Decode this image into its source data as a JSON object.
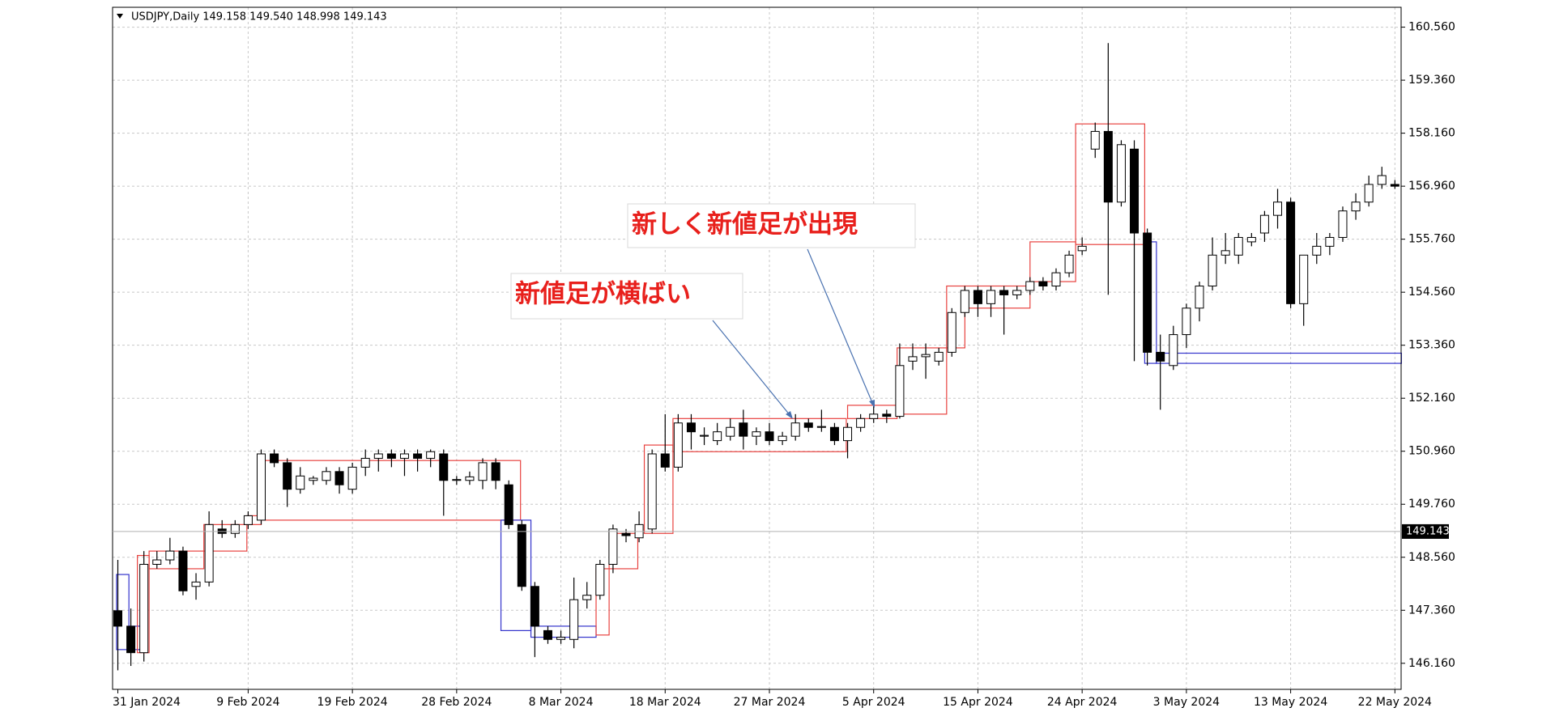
{
  "chart_data": {
    "type": "candlestick",
    "title": "USDJPY,Daily  149.158 149.540 148.998 149.143",
    "annotations": [
      "新しく新値足が出現",
      "新値足が横ばい"
    ],
    "categories": [
      "31 Jan 2024",
      null,
      null,
      null,
      null,
      null,
      null,
      null,
      null,
      null,
      "9 Feb 2024",
      null,
      null,
      null,
      null,
      null,
      null,
      null,
      "19 Feb 2024",
      null,
      null,
      null,
      null,
      null,
      null,
      null,
      "28 Feb 2024",
      null,
      null,
      null,
      null,
      null,
      null,
      null,
      "8 Mar 2024",
      null,
      null,
      null,
      null,
      null,
      null,
      null,
      "18 Mar 2024",
      null,
      null,
      null,
      null,
      null,
      null,
      null,
      "27 Mar 2024",
      null,
      null,
      null,
      null,
      null,
      null,
      null,
      "5 Apr 2024",
      null,
      null,
      null,
      null,
      null,
      null,
      null,
      "15 Apr 2024",
      null,
      null,
      null,
      null,
      null,
      null,
      null,
      "24 Apr 2024",
      null,
      null,
      null,
      null,
      null,
      null,
      null,
      "3 May 2024",
      null,
      null,
      null,
      null,
      null,
      null,
      null,
      "13 May 2024",
      null,
      null,
      null,
      null,
      null,
      null,
      null,
      "22 May 2024"
    ],
    "open": [
      147.35,
      147.0,
      146.4,
      148.4,
      148.5,
      148.7,
      147.9,
      148.0,
      149.2,
      149.1,
      149.3,
      149.4,
      150.9,
      150.7,
      150.1,
      150.3,
      150.3,
      150.5,
      150.1,
      150.6,
      150.8,
      150.9,
      150.8,
      150.9,
      150.8,
      150.9,
      150.3,
      150.3,
      150.3,
      150.7,
      150.2,
      149.3,
      147.9,
      146.9,
      146.7,
      146.7,
      147.6,
      147.7,
      148.4,
      149.1,
      149.0,
      149.2,
      150.9,
      150.6,
      151.6,
      151.3,
      151.2,
      151.3,
      151.6,
      151.3,
      151.4,
      151.2,
      151.3,
      151.6,
      151.5,
      151.5,
      151.2,
      151.5,
      151.7,
      151.8,
      151.75,
      153.0,
      153.1,
      153.0,
      153.2,
      154.1,
      154.6,
      154.3,
      154.6,
      154.5,
      154.6,
      154.8,
      154.7,
      155.0,
      155.5,
      157.8,
      158.2,
      156.6,
      157.8,
      155.9,
      153.2,
      152.9,
      153.6,
      154.2,
      154.7,
      155.4,
      155.4,
      155.7,
      155.9,
      156.3,
      156.6,
      154.3,
      155.4,
      155.6,
      155.8,
      156.4,
      156.6,
      157.0,
      157.0
    ],
    "high": [
      148.5,
      147.4,
      148.7,
      148.7,
      149.0,
      148.8,
      148.2,
      149.6,
      149.4,
      149.4,
      149.6,
      151.0,
      151.0,
      150.8,
      150.6,
      150.4,
      150.6,
      150.6,
      150.7,
      151.0,
      151.0,
      151.0,
      151.0,
      151.0,
      151.0,
      151.0,
      150.4,
      150.5,
      150.8,
      150.8,
      150.3,
      149.4,
      148.0,
      147.0,
      146.9,
      148.1,
      148.0,
      148.5,
      149.3,
      149.2,
      149.6,
      151.0,
      151.8,
      151.8,
      151.8,
      151.5,
      151.6,
      151.7,
      151.9,
      151.5,
      151.6,
      151.4,
      151.8,
      151.7,
      151.9,
      151.6,
      151.6,
      151.8,
      152.0,
      151.9,
      153.4,
      153.4,
      153.4,
      153.3,
      154.2,
      154.7,
      154.7,
      154.7,
      154.7,
      154.7,
      154.9,
      154.9,
      155.1,
      155.5,
      155.8,
      158.4,
      160.2,
      158.0,
      158.0,
      156.0,
      153.6,
      153.8,
      154.3,
      154.8,
      155.8,
      155.9,
      155.9,
      155.9,
      156.4,
      156.9,
      156.7,
      155.4,
      155.9,
      155.9,
      156.5,
      156.8,
      157.2,
      157.4,
      157.1
    ],
    "low": [
      146.0,
      146.1,
      146.2,
      148.3,
      148.4,
      147.7,
      147.6,
      147.9,
      149.0,
      149.0,
      149.2,
      149.3,
      150.6,
      149.7,
      150.0,
      150.2,
      150.2,
      150.0,
      150.0,
      150.4,
      150.5,
      150.6,
      150.4,
      150.5,
      150.6,
      149.5,
      150.2,
      150.2,
      150.1,
      150.1,
      149.2,
      147.8,
      146.3,
      146.6,
      146.6,
      146.5,
      147.4,
      147.6,
      148.2,
      148.9,
      148.9,
      149.1,
      150.5,
      150.5,
      151.0,
      151.1,
      151.1,
      151.2,
      151.0,
      151.1,
      151.1,
      151.1,
      151.2,
      151.4,
      151.4,
      151.1,
      150.8,
      151.4,
      151.6,
      151.6,
      151.7,
      152.8,
      152.6,
      152.9,
      153.1,
      154.0,
      154.0,
      154.0,
      153.6,
      154.4,
      154.5,
      154.6,
      154.6,
      154.9,
      155.4,
      157.6,
      154.5,
      156.5,
      153.0,
      152.9,
      151.9,
      152.8,
      153.3,
      153.9,
      154.6,
      155.2,
      155.2,
      155.6,
      155.7,
      156.0,
      154.2,
      153.8,
      155.2,
      155.4,
      155.7,
      156.2,
      156.5,
      156.9,
      156.9
    ],
    "close": [
      147.0,
      146.4,
      148.4,
      148.5,
      148.7,
      147.8,
      148.0,
      149.3,
      149.1,
      149.3,
      149.5,
      150.9,
      150.7,
      150.1,
      150.4,
      150.35,
      150.5,
      150.2,
      150.6,
      150.8,
      150.9,
      150.8,
      150.9,
      150.8,
      150.95,
      150.3,
      150.32,
      150.38,
      150.7,
      150.3,
      149.3,
      147.9,
      147.0,
      146.7,
      146.75,
      147.6,
      147.7,
      148.4,
      149.2,
      149.05,
      149.3,
      150.9,
      150.6,
      151.6,
      151.4,
      151.32,
      151.4,
      151.5,
      151.3,
      151.4,
      151.2,
      151.3,
      151.6,
      151.5,
      151.52,
      151.2,
      151.5,
      151.7,
      151.8,
      151.75,
      152.9,
      153.1,
      153.15,
      153.2,
      154.1,
      154.6,
      154.3,
      154.6,
      154.5,
      154.6,
      154.8,
      154.7,
      155.0,
      155.4,
      155.6,
      158.2,
      156.6,
      157.9,
      155.9,
      153.2,
      153.0,
      153.6,
      154.2,
      154.7,
      155.4,
      155.5,
      155.8,
      155.8,
      156.3,
      156.6,
      154.3,
      155.4,
      155.6,
      155.8,
      156.4,
      156.6,
      157.0,
      157.2,
      156.96
    ],
    "up_color": "#ffffff",
    "down_color": "#000000",
    "boxes": [
      {
        "color": "#3333cc",
        "start": -0.1,
        "end": 0.85,
        "low": 146.47,
        "high": 148.17
      },
      {
        "color": "#3333cc",
        "start": 0.85,
        "end": 1.9,
        "low": 146.47,
        "high": 147.0
      },
      {
        "color": "#e8423f",
        "start": 1.5,
        "end": 2.4,
        "low": 146.4,
        "high": 148.6
      },
      {
        "color": "#e8423f",
        "start": 2.4,
        "end": 6.6,
        "low": 148.3,
        "high": 148.7
      },
      {
        "color": "#e8423f",
        "start": 6.6,
        "end": 9.9,
        "low": 148.7,
        "high": 149.3
      },
      {
        "color": "#e8423f",
        "start": 9.9,
        "end": 11.0,
        "low": 149.3,
        "high": 149.5
      },
      {
        "color": "#e8423f",
        "start": 11.0,
        "end": 30.9,
        "low": 149.4,
        "high": 150.75
      },
      {
        "color": "#3333cc",
        "start": 29.4,
        "end": 31.7,
        "low": 146.9,
        "high": 149.4
      },
      {
        "color": "#3333cc",
        "start": 31.7,
        "end": 36.7,
        "low": 146.75,
        "high": 147.0
      },
      {
        "color": "#e8423f",
        "start": 36.7,
        "end": 37.7,
        "low": 146.8,
        "high": 148.3
      },
      {
        "color": "#e8423f",
        "start": 37.7,
        "end": 39.9,
        "low": 148.3,
        "high": 149.1
      },
      {
        "color": "#e8423f",
        "start": 40.4,
        "end": 42.6,
        "low": 149.1,
        "high": 151.1
      },
      {
        "color": "#e8423f",
        "start": 42.6,
        "end": 55.9,
        "low": 150.95,
        "high": 151.7
      },
      {
        "color": "#e8423f",
        "start": 56.0,
        "end": 59.8,
        "low": 151.7,
        "high": 152.0
      },
      {
        "color": "#e8423f",
        "start": 59.8,
        "end": 63.6,
        "low": 151.8,
        "high": 153.3
      },
      {
        "color": "#e8423f",
        "start": 63.6,
        "end": 65.0,
        "low": 153.3,
        "high": 154.7
      },
      {
        "color": "#e8423f",
        "start": 65.0,
        "end": 70.0,
        "low": 154.2,
        "high": 154.7
      },
      {
        "color": "#e8423f",
        "start": 70.0,
        "end": 73.5,
        "low": 154.8,
        "high": 155.7
      },
      {
        "color": "#e8423f",
        "start": 73.5,
        "end": 78.8,
        "low": 155.64,
        "high": 158.37
      },
      {
        "color": "#3333cc",
        "start": 78.8,
        "end": 79.7,
        "low": 152.95,
        "high": 155.7
      },
      {
        "color": "#3333cc",
        "start": 79.7,
        "end": 98.5,
        "low": 152.95,
        "high": 153.18
      }
    ],
    "last_price": 149.143,
    "ylim": [
      145.57,
      161.01
    ],
    "yticks": [
      {
        "value": 146.16,
        "label": "146.160"
      },
      {
        "value": 147.36,
        "label": "147.360"
      },
      {
        "value": 148.56,
        "label": "148.560"
      },
      {
        "value": 149.76,
        "label": "149.760"
      },
      {
        "value": 150.96,
        "label": "150.960"
      },
      {
        "value": 152.16,
        "label": "152.160"
      },
      {
        "value": 153.36,
        "label": "153.360"
      },
      {
        "value": 154.56,
        "label": "154.560"
      },
      {
        "value": 155.76,
        "label": "155.760"
      },
      {
        "value": 156.96,
        "label": "156.960"
      },
      {
        "value": 158.16,
        "label": "158.160"
      },
      {
        "value": 159.36,
        "label": "159.360"
      },
      {
        "value": 160.56,
        "label": "160.560"
      }
    ],
    "grid": true
  }
}
